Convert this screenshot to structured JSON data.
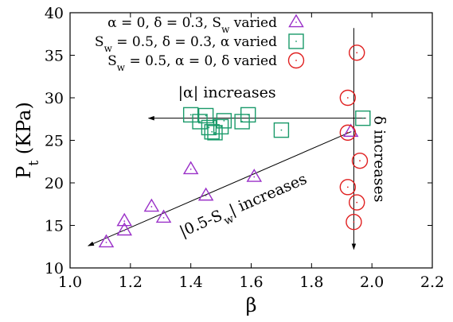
{
  "chart_data": {
    "type": "scatter",
    "title": "",
    "xlabel": "β",
    "ylabel": {
      "main": "P",
      "sub": "t",
      "rest": " (KPa)"
    },
    "xlim": [
      1.0,
      2.2
    ],
    "ylim": [
      10,
      40
    ],
    "x_ticks": [
      "1.0",
      "1.2",
      "1.4",
      "1.6",
      "1.8",
      "2.0",
      "2.2"
    ],
    "y_ticks": [
      "10",
      "15",
      "20",
      "25",
      "30",
      "35",
      "40"
    ],
    "grid": false,
    "legend_position": "top-center",
    "series": [
      {
        "legend": [
          {
            "t": "α = 0, δ = 0.3, S"
          },
          {
            "t": "w",
            "sub": true
          },
          {
            "t": " varied"
          }
        ],
        "marker": "triangle",
        "color": "#9a30c8",
        "points": [
          [
            1.12,
            13.0
          ],
          [
            1.18,
            14.4
          ],
          [
            1.18,
            15.5
          ],
          [
            1.27,
            17.2
          ],
          [
            1.31,
            15.9
          ],
          [
            1.4,
            21.6
          ],
          [
            1.45,
            18.5
          ],
          [
            1.61,
            20.7
          ],
          [
            1.93,
            26.0
          ]
        ]
      },
      {
        "legend": [
          {
            "t": "S"
          },
          {
            "t": "w",
            "sub": true
          },
          {
            "t": " = 0.5, δ = 0.3, α varied"
          }
        ],
        "marker": "square",
        "color": "#1a9a6a",
        "points": [
          [
            1.4,
            28.0
          ],
          [
            1.43,
            27.2
          ],
          [
            1.45,
            27.9
          ],
          [
            1.46,
            26.5
          ],
          [
            1.47,
            26.0
          ],
          [
            1.48,
            25.9
          ],
          [
            1.5,
            26.6
          ],
          [
            1.51,
            27.3
          ],
          [
            1.57,
            27.2
          ],
          [
            1.59,
            28.0
          ],
          [
            1.7,
            26.2
          ],
          [
            1.97,
            27.6
          ]
        ]
      },
      {
        "legend": [
          {
            "t": "S"
          },
          {
            "t": "w",
            "sub": true
          },
          {
            "t": " = 0.5, α = 0, δ varied"
          }
        ],
        "marker": "circle",
        "color": "#e02020",
        "points": [
          [
            1.92,
            30.0
          ],
          [
            1.92,
            25.9
          ],
          [
            1.92,
            19.5
          ],
          [
            1.94,
            15.4
          ],
          [
            1.95,
            35.3
          ],
          [
            1.95,
            17.7
          ],
          [
            1.96,
            22.6
          ]
        ]
      }
    ],
    "annotations": {
      "alpha": {
        "pre": "|α| increases",
        "text": "|α| increases"
      },
      "sw": [
        {
          "t": "|0.5-S"
        },
        {
          "t": "w",
          "sub": true
        },
        {
          "t": "| increases"
        }
      ],
      "delta": "δ increases"
    },
    "arrows": [
      {
        "name": "alpha-arrow",
        "from": [
          1.98,
          27.6
        ],
        "to": [
          1.26,
          27.6
        ]
      },
      {
        "name": "sw-arrow",
        "from": [
          1.93,
          26.0
        ],
        "to": [
          1.06,
          12.6
        ]
      },
      {
        "name": "delta-arrow",
        "from": [
          1.94,
          38.2
        ],
        "to": [
          1.94,
          12.2
        ]
      }
    ]
  }
}
